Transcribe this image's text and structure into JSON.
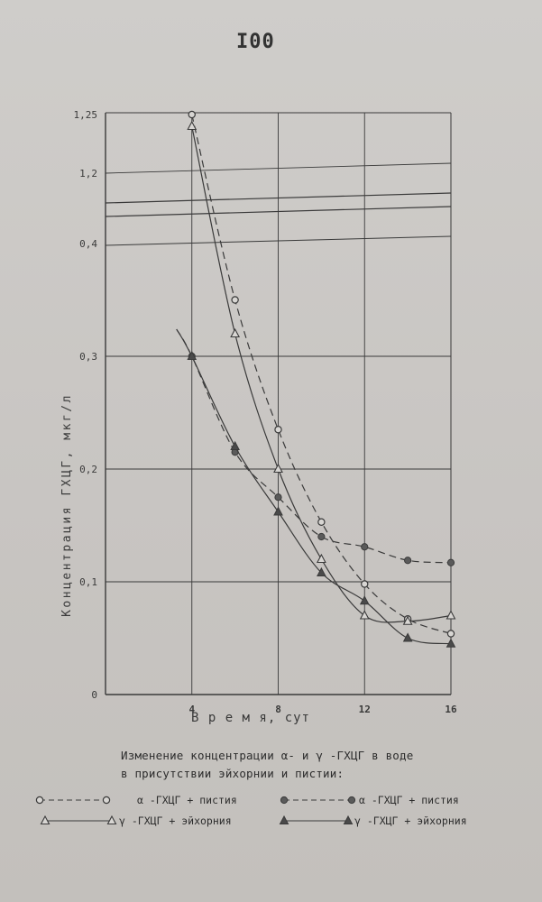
{
  "page": {
    "number": "I00"
  },
  "chart_data": {
    "type": "line",
    "ylabel": "Концентрация ГХЦГ, мкг/л",
    "xlabel": "В р е м я, сут",
    "x_ticks": [
      "4",
      "8",
      "12",
      "16"
    ],
    "y_ticks_lower": [
      "0",
      "0,1",
      "0,2",
      "0,3",
      "0,4"
    ],
    "y_ticks_upper": [
      "1,2",
      "1,25"
    ],
    "y_axis_break": true,
    "xlim": [
      0,
      16
    ],
    "ylim_lower": [
      0,
      0.4
    ],
    "ylim_upper": [
      1.2,
      1.25
    ],
    "grid": true,
    "series": [
      {
        "name": "α -ГХЦГ + пистия",
        "style": "dashed",
        "marker": "open-circle",
        "x": [
          4,
          6,
          8,
          10,
          12,
          14,
          16
        ],
        "y": [
          1.25,
          0.35,
          0.235,
          0.153,
          0.098,
          0.067,
          0.054
        ]
      },
      {
        "name": "γ -ГХЦГ + эйхорния",
        "style": "solid",
        "marker": "open-triangle",
        "x": [
          4,
          6,
          8,
          10,
          12,
          14,
          16
        ],
        "y": [
          1.24,
          0.32,
          0.2,
          0.12,
          0.07,
          0.065,
          0.07
        ]
      },
      {
        "name": "α -ГХЦГ + пистия",
        "style": "dashed",
        "marker": "filled-circle",
        "x": [
          4,
          6,
          8,
          10,
          12,
          14,
          16
        ],
        "y": [
          0.3,
          0.215,
          0.175,
          0.14,
          0.131,
          0.119,
          0.117
        ]
      },
      {
        "name": "γ -ГХЦГ + эйхорния",
        "style": "solid",
        "marker": "filled-triangle",
        "x": [
          4,
          6,
          8,
          10,
          12,
          14,
          16
        ],
        "y": [
          0.3,
          0.22,
          0.162,
          0.108,
          0.083,
          0.05,
          0.045
        ]
      }
    ],
    "caption_line1": "Изменение концентрации α- и γ -ГХЦГ в воде",
    "caption_line2": "в присутствии эйхорнии и пистии:"
  },
  "colors": {
    "ink": "#3a3a3a",
    "paper": "#cbc8c5"
  }
}
